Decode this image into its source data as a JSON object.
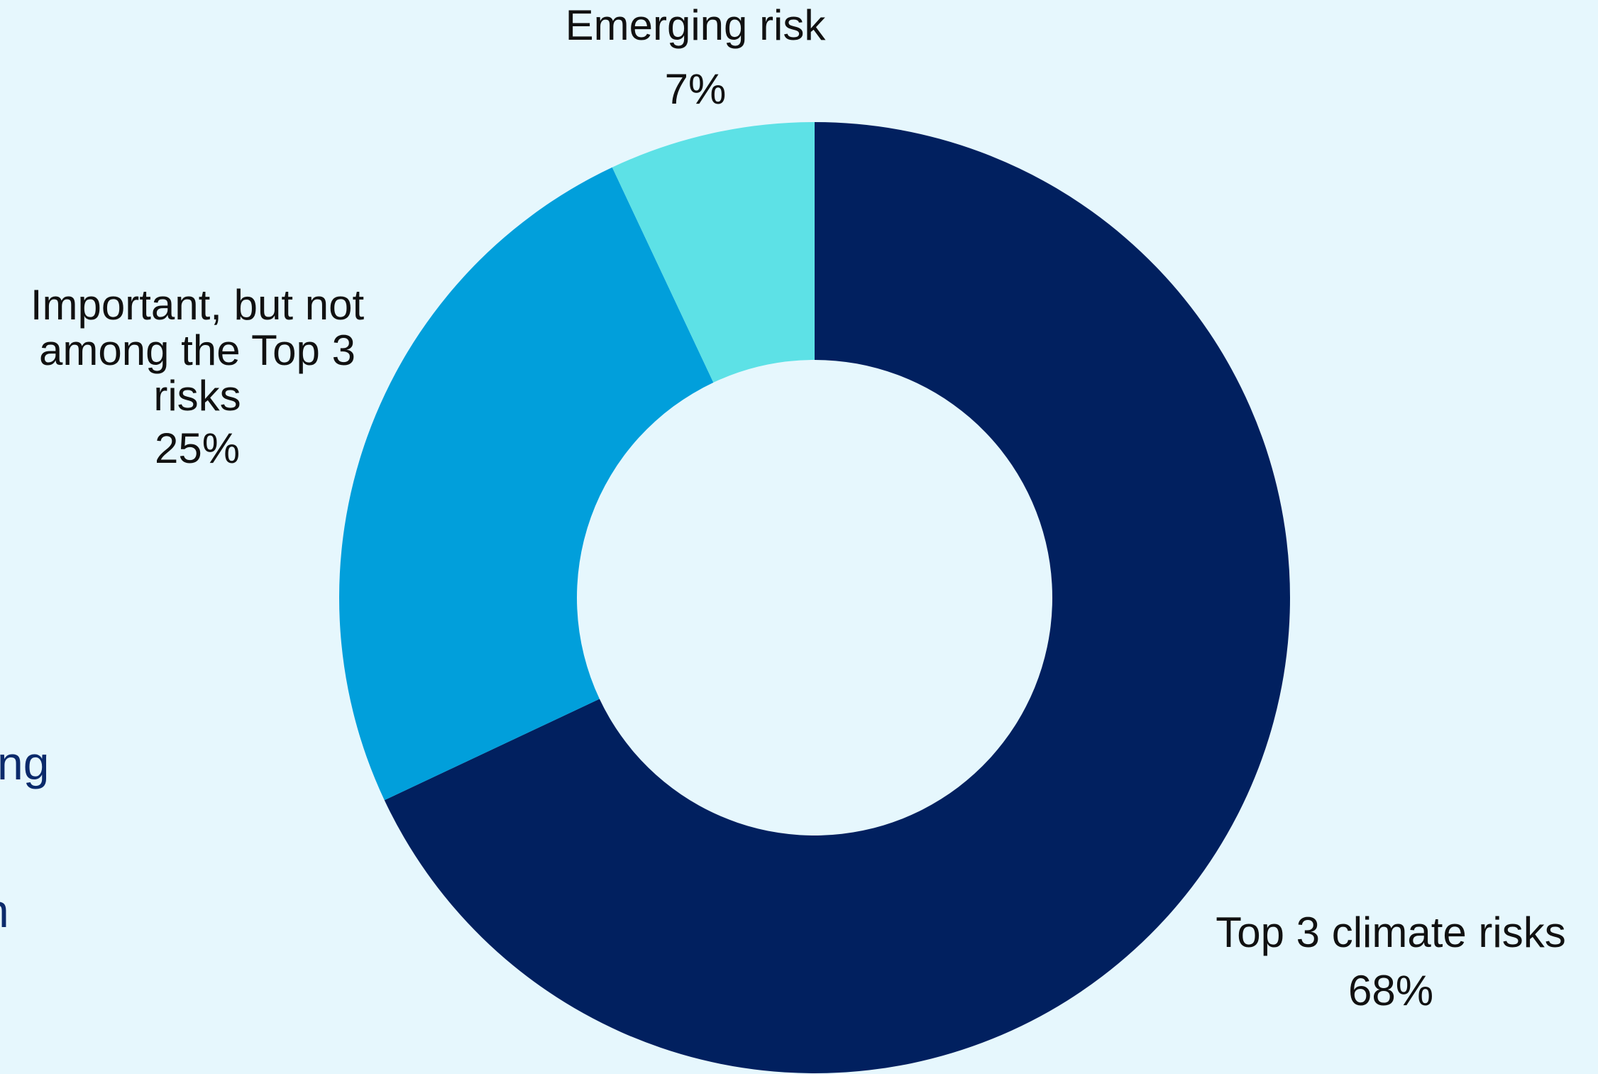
{
  "chart_data": {
    "type": "pie",
    "variant": "donut",
    "title": "",
    "slices": [
      {
        "label": "Top 3 climate risks",
        "value": 68,
        "value_label": "68%",
        "color": "#01205f"
      },
      {
        "label": "Important, but not among the Top 3 risks",
        "value_label": "25%",
        "value": 25,
        "color": "#019fdb"
      },
      {
        "label": "Emerging risk",
        "value": 7,
        "value_label": "7%",
        "color": "#5de1e6"
      }
    ],
    "start": "12 o'clock",
    "direction": "clockwise",
    "legend": "none"
  },
  "fragments": {
    "clipped_left_1": "ng",
    "clipped_left_2": "n"
  },
  "colors": {
    "background": "#e6f7fd",
    "label_text": "#111111",
    "fragment_text": "#0b2a6b"
  }
}
